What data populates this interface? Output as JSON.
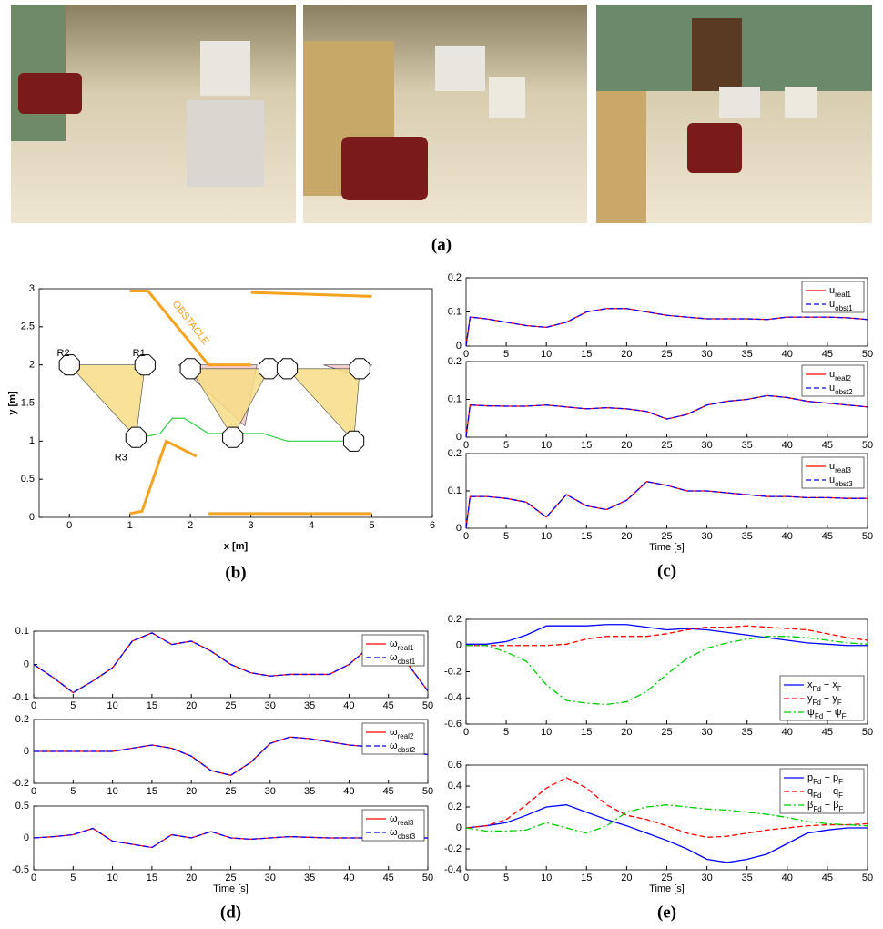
{
  "photos": {
    "panel_label": "(a)"
  },
  "chart_data": [
    {
      "type": "line",
      "panel_label": "(b)",
      "xlabel": "x [m]",
      "ylabel": "y [m]",
      "xlim": [
        -0.5,
        6
      ],
      "ylim": [
        0,
        3
      ],
      "xticks": [
        0,
        1,
        2,
        3,
        4,
        5,
        6
      ],
      "yticks": [
        0,
        0.5,
        1,
        1.5,
        2,
        2.5,
        3
      ],
      "annotations": [
        "R1",
        "R2",
        "R3",
        "OBSTACLE"
      ],
      "series": [
        {
          "color": "#f4c6c9",
          "fill": true,
          "x": [
            1.8,
            3.1,
            2.9
          ],
          "values": [
            2.0,
            2.0,
            1.2
          ]
        },
        {
          "color": "#f4c6c9",
          "fill": true,
          "x": [
            4.2,
            5.0,
            4.8
          ],
          "values": [
            2.0,
            2.0,
            1.85
          ]
        },
        {
          "color": "#f7dd86",
          "fill": true,
          "x": [
            0,
            1.25,
            1.1
          ],
          "values": [
            2.0,
            2.0,
            1.05
          ]
        },
        {
          "color": "#f7dd86",
          "fill": true,
          "x": [
            2.0,
            3.3,
            2.7
          ],
          "values": [
            1.95,
            1.95,
            1.05
          ]
        },
        {
          "color": "#f7dd86",
          "fill": true,
          "x": [
            3.6,
            4.8,
            4.7
          ],
          "values": [
            1.95,
            1.95,
            1.0
          ]
        },
        {
          "color": "#f5a21e",
          "x": [
            1.0,
            1.3,
            2.3,
            3.0
          ],
          "values": [
            2.97,
            2.97,
            2.0,
            2.0
          ]
        },
        {
          "color": "#f5a21e",
          "x": [
            3.0,
            5.0
          ],
          "values": [
            2.95,
            2.9
          ]
        },
        {
          "color": "#f5a21e",
          "x": [
            1.0,
            1.2,
            1.6,
            2.1
          ],
          "values": [
            0.05,
            0.08,
            1.0,
            0.8
          ]
        },
        {
          "color": "#f5a21e",
          "x": [
            2.3,
            5.0
          ],
          "values": [
            0.05,
            0.05
          ]
        },
        {
          "color": "#2ecc40",
          "x": [
            1.2,
            1.5,
            1.7,
            1.9,
            2.3,
            2.8,
            3.2,
            3.6,
            4.2,
            4.7
          ],
          "values": [
            1.05,
            1.1,
            1.3,
            1.3,
            1.1,
            1.1,
            1.1,
            1.0,
            1.0,
            1.0
          ]
        }
      ]
    },
    {
      "type": "line",
      "xlim": [
        0,
        50
      ],
      "ylim": [
        0,
        0.2
      ],
      "xticks": [
        0,
        5,
        10,
        15,
        20,
        25,
        30,
        35,
        40,
        45,
        50
      ],
      "yticks": [
        0,
        0.1,
        0.2
      ],
      "legend": "upper right",
      "x": [
        0,
        0.5,
        2.5,
        5,
        7.5,
        10,
        12.5,
        15,
        17.5,
        20,
        22.5,
        25,
        27.5,
        30,
        32.5,
        35,
        37.5,
        40,
        42.5,
        45,
        47.5,
        50
      ],
      "series": [
        {
          "name": "u_real1",
          "color": "#ff0000",
          "style": "solid",
          "values": [
            0,
            0.085,
            0.08,
            0.07,
            0.06,
            0.055,
            0.07,
            0.1,
            0.11,
            0.11,
            0.1,
            0.09,
            0.085,
            0.08,
            0.08,
            0.08,
            0.078,
            0.085,
            0.085,
            0.085,
            0.083,
            0.078
          ]
        },
        {
          "name": "u_obst1",
          "color": "#0000ff",
          "style": "dashed",
          "values": [
            0,
            0.085,
            0.08,
            0.07,
            0.06,
            0.055,
            0.07,
            0.1,
            0.11,
            0.11,
            0.1,
            0.09,
            0.085,
            0.08,
            0.08,
            0.08,
            0.078,
            0.085,
            0.085,
            0.085,
            0.083,
            0.078
          ]
        }
      ]
    },
    {
      "type": "line",
      "xlim": [
        0,
        50
      ],
      "ylim": [
        0,
        0.2
      ],
      "xticks": [
        0,
        5,
        10,
        15,
        20,
        25,
        30,
        35,
        40,
        45,
        50
      ],
      "yticks": [
        0,
        0.1,
        0.2
      ],
      "legend": "upper right",
      "x": [
        0,
        0.5,
        2.5,
        5,
        7.5,
        10,
        12.5,
        15,
        17.5,
        20,
        22.5,
        25,
        27.5,
        30,
        32.5,
        35,
        37.5,
        40,
        42.5,
        45,
        47.5,
        50
      ],
      "series": [
        {
          "name": "u_real2",
          "color": "#ff0000",
          "style": "solid",
          "values": [
            0,
            0.085,
            0.083,
            0.082,
            0.082,
            0.085,
            0.08,
            0.075,
            0.078,
            0.075,
            0.068,
            0.048,
            0.06,
            0.085,
            0.095,
            0.1,
            0.11,
            0.105,
            0.095,
            0.09,
            0.085,
            0.08
          ]
        },
        {
          "name": "u_obst2",
          "color": "#0000ff",
          "style": "dashed",
          "values": [
            0,
            0.085,
            0.083,
            0.082,
            0.082,
            0.085,
            0.08,
            0.075,
            0.078,
            0.075,
            0.068,
            0.048,
            0.06,
            0.085,
            0.095,
            0.1,
            0.11,
            0.105,
            0.095,
            0.09,
            0.085,
            0.08
          ]
        }
      ]
    },
    {
      "type": "line",
      "xlabel": "Time [s]",
      "panel_label": "(c)",
      "xlim": [
        0,
        50
      ],
      "ylim": [
        0,
        0.2
      ],
      "xticks": [
        0,
        5,
        10,
        15,
        20,
        25,
        30,
        35,
        40,
        45,
        50
      ],
      "yticks": [
        0,
        0.1,
        0.2
      ],
      "legend": "upper right",
      "x": [
        0,
        0.5,
        2.5,
        5,
        7.5,
        10,
        12.5,
        15,
        17.5,
        20,
        22.5,
        25,
        27.5,
        30,
        32.5,
        35,
        37.5,
        40,
        42.5,
        45,
        47.5,
        50
      ],
      "series": [
        {
          "name": "u_real3",
          "color": "#ff0000",
          "style": "solid",
          "values": [
            0,
            0.085,
            0.085,
            0.08,
            0.07,
            0.03,
            0.09,
            0.06,
            0.05,
            0.075,
            0.125,
            0.115,
            0.1,
            0.1,
            0.095,
            0.09,
            0.085,
            0.085,
            0.082,
            0.082,
            0.08,
            0.08
          ]
        },
        {
          "name": "u_obst3",
          "color": "#0000ff",
          "style": "dashed",
          "values": [
            0,
            0.085,
            0.085,
            0.08,
            0.07,
            0.03,
            0.09,
            0.06,
            0.05,
            0.075,
            0.125,
            0.115,
            0.1,
            0.1,
            0.095,
            0.09,
            0.085,
            0.085,
            0.082,
            0.082,
            0.08,
            0.08
          ]
        }
      ]
    },
    {
      "type": "line",
      "xlim": [
        0,
        50
      ],
      "ylim": [
        -0.1,
        0.1
      ],
      "xticks": [
        0,
        5,
        10,
        15,
        20,
        25,
        30,
        35,
        40,
        45,
        50
      ],
      "yticks": [
        -0.1,
        0,
        0.1
      ],
      "legend": "upper right",
      "x": [
        0,
        2.5,
        5,
        7.5,
        10,
        12.5,
        15,
        17.5,
        20,
        22.5,
        25,
        27.5,
        30,
        32.5,
        35,
        37.5,
        40,
        42.5,
        45,
        47.5,
        50
      ],
      "series": [
        {
          "name": "ω_real1",
          "color": "#ff0000",
          "style": "solid",
          "values": [
            0,
            -0.04,
            -0.085,
            -0.05,
            -0.01,
            0.07,
            0.095,
            0.06,
            0.07,
            0.04,
            0,
            -0.025,
            -0.035,
            -0.03,
            -0.03,
            -0.03,
            0,
            0.05,
            0.04,
            0,
            -0.08
          ]
        },
        {
          "name": "ω_obst1",
          "color": "#0000ff",
          "style": "dashed",
          "values": [
            0,
            -0.04,
            -0.085,
            -0.05,
            -0.01,
            0.07,
            0.095,
            0.06,
            0.07,
            0.04,
            0,
            -0.025,
            -0.035,
            -0.03,
            -0.03,
            -0.03,
            0,
            0.05,
            0.04,
            0,
            -0.08
          ]
        }
      ]
    },
    {
      "type": "line",
      "xlim": [
        0,
        50
      ],
      "ylim": [
        -0.2,
        0.2
      ],
      "xticks": [
        0,
        5,
        10,
        15,
        20,
        25,
        30,
        35,
        40,
        45,
        50
      ],
      "yticks": [
        -0.2,
        0,
        0.2
      ],
      "legend": "upper right",
      "x": [
        0,
        2.5,
        5,
        7.5,
        10,
        12.5,
        15,
        17.5,
        20,
        22.5,
        25,
        27.5,
        30,
        32.5,
        35,
        37.5,
        40,
        42.5,
        45,
        47.5,
        50
      ],
      "series": [
        {
          "name": "ω_real2",
          "color": "#ff0000",
          "style": "solid",
          "values": [
            0,
            0,
            0,
            0,
            0,
            0.02,
            0.04,
            0.02,
            -0.03,
            -0.12,
            -0.15,
            -0.07,
            0.05,
            0.09,
            0.08,
            0.06,
            0.04,
            0.03,
            0.02,
            0,
            -0.02
          ]
        },
        {
          "name": "ω_obst2",
          "color": "#0000ff",
          "style": "dashed",
          "values": [
            0,
            0,
            0,
            0,
            0,
            0.02,
            0.04,
            0.02,
            -0.03,
            -0.12,
            -0.15,
            -0.07,
            0.05,
            0.09,
            0.08,
            0.06,
            0.04,
            0.03,
            0.02,
            0,
            -0.02
          ]
        }
      ]
    },
    {
      "type": "line",
      "xlabel": "Time [s]",
      "panel_label": "(d)",
      "xlim": [
        0,
        50
      ],
      "ylim": [
        -0.5,
        0.5
      ],
      "xticks": [
        0,
        5,
        10,
        15,
        20,
        25,
        30,
        35,
        40,
        45,
        50
      ],
      "yticks": [
        -0.5,
        0,
        0.5
      ],
      "legend": "upper right",
      "x": [
        0,
        2.5,
        5,
        7.5,
        10,
        12.5,
        15,
        17.5,
        20,
        22.5,
        25,
        27.5,
        30,
        32.5,
        35,
        37.5,
        40,
        42.5,
        45,
        47.5,
        50
      ],
      "series": [
        {
          "name": "ω_real3",
          "color": "#ff0000",
          "style": "solid",
          "values": [
            0,
            0.02,
            0.05,
            0.15,
            -0.05,
            -0.1,
            -0.15,
            0.05,
            0,
            0.1,
            0,
            -0.02,
            0,
            0.02,
            0.01,
            0,
            0,
            0,
            0,
            0,
            0
          ]
        },
        {
          "name": "ω_obst3",
          "color": "#0000ff",
          "style": "dashed",
          "values": [
            0,
            0.02,
            0.05,
            0.15,
            -0.05,
            -0.1,
            -0.15,
            0.05,
            0,
            0.1,
            0,
            -0.02,
            0,
            0.02,
            0.01,
            0,
            0,
            0,
            0,
            0,
            0
          ]
        }
      ]
    },
    {
      "type": "line",
      "xlim": [
        0,
        50
      ],
      "ylim": [
        -0.6,
        0.2
      ],
      "xticks": [
        0,
        5,
        10,
        15,
        20,
        25,
        30,
        35,
        40,
        45,
        50
      ],
      "yticks": [
        -0.6,
        -0.4,
        -0.2,
        0,
        0.2
      ],
      "legend": "lower right",
      "x": [
        0,
        2.5,
        5,
        7.5,
        10,
        12.5,
        15,
        17.5,
        20,
        22.5,
        25,
        27.5,
        30,
        32.5,
        35,
        37.5,
        40,
        42.5,
        45,
        47.5,
        50
      ],
      "series": [
        {
          "name": "x_Fd − x_F",
          "color": "#0000ff",
          "style": "solid",
          "values": [
            0.01,
            0.01,
            0.03,
            0.08,
            0.15,
            0.15,
            0.15,
            0.16,
            0.16,
            0.14,
            0.12,
            0.13,
            0.12,
            0.1,
            0.08,
            0.06,
            0.04,
            0.02,
            0.01,
            0,
            0
          ]
        },
        {
          "name": "y_Fd − y_F",
          "color": "#ff0000",
          "style": "dashed",
          "values": [
            0,
            0,
            0,
            0,
            0,
            0.01,
            0.05,
            0.07,
            0.07,
            0.07,
            0.09,
            0.12,
            0.14,
            0.14,
            0.15,
            0.14,
            0.13,
            0.12,
            0.09,
            0.06,
            0.04
          ]
        },
        {
          "name": "ψ_Fd − ψ_F",
          "color": "#00cc00",
          "style": "dashdot",
          "values": [
            0,
            0,
            -0.05,
            -0.12,
            -0.3,
            -0.42,
            -0.44,
            -0.45,
            -0.43,
            -0.35,
            -0.22,
            -0.1,
            -0.02,
            0.02,
            0.05,
            0.07,
            0.07,
            0.06,
            0.04,
            0.02,
            0.01
          ]
        }
      ]
    },
    {
      "type": "line",
      "xlabel": "Time [s]",
      "panel_label": "(e)",
      "xlim": [
        0,
        50
      ],
      "ylim": [
        -0.4,
        0.6
      ],
      "xticks": [
        0,
        5,
        10,
        15,
        20,
        25,
        30,
        35,
        40,
        45,
        50
      ],
      "yticks": [
        -0.4,
        -0.2,
        0,
        0.2,
        0.4,
        0.6
      ],
      "legend": "upper right",
      "x": [
        0,
        2.5,
        5,
        7.5,
        10,
        12.5,
        15,
        17.5,
        20,
        22.5,
        25,
        27.5,
        30,
        32.5,
        35,
        37.5,
        40,
        42.5,
        45,
        47.5,
        50
      ],
      "series": [
        {
          "name": "p_Fd − p_F",
          "color": "#0000ff",
          "style": "solid",
          "values": [
            0,
            0.02,
            0.05,
            0.12,
            0.2,
            0.22,
            0.15,
            0.08,
            0.02,
            -0.05,
            -0.12,
            -0.2,
            -0.3,
            -0.33,
            -0.3,
            -0.25,
            -0.15,
            -0.05,
            -0.02,
            0,
            0
          ]
        },
        {
          "name": "q_Fd − q_F",
          "color": "#ff0000",
          "style": "dashed",
          "values": [
            0,
            0.02,
            0.08,
            0.22,
            0.38,
            0.48,
            0.38,
            0.22,
            0.12,
            0.08,
            0.02,
            -0.05,
            -0.09,
            -0.08,
            -0.05,
            -0.02,
            0,
            0.02,
            0.03,
            0.03,
            0.04
          ]
        },
        {
          "name": "β_Fd − β_F",
          "color": "#00cc00",
          "style": "dashdot",
          "values": [
            0,
            -0.03,
            -0.03,
            -0.02,
            0.05,
            0,
            -0.05,
            0.02,
            0.15,
            0.2,
            0.22,
            0.2,
            0.18,
            0.17,
            0.15,
            0.13,
            0.1,
            0.06,
            0.04,
            0.03,
            0.02
          ]
        }
      ]
    }
  ]
}
